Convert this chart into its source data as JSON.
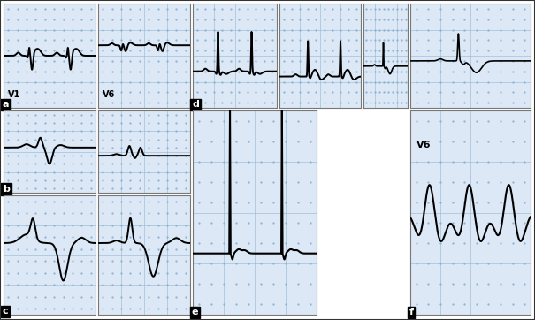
{
  "bg_color": "#dce8f5",
  "grid_dot_color": "#8ab0d0",
  "line_color": "#000000",
  "white": "#ffffff",
  "label_fontsize": 8,
  "panel_letter_fontsize": 9,
  "figsize": [
    6.05,
    3.62
  ],
  "dpi": 100,
  "panels": {
    "a_label": "a",
    "b_label": "b",
    "c_label": "c",
    "d_label": "d",
    "e_label": "e",
    "f_label": "f",
    "v1_label": "V1",
    "v6a_label": "V6",
    "v6f_label": "V6"
  }
}
